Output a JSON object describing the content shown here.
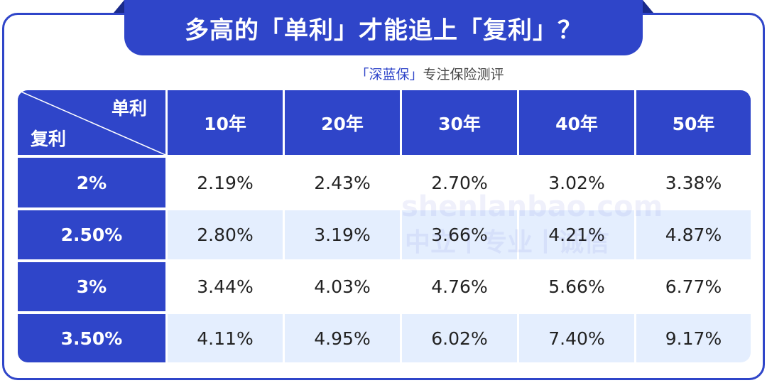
{
  "header": {
    "title": "多高的「单利」才能追上「复利」？",
    "subtitle_brand": "「深蓝保」",
    "subtitle_text": "专注保险测评"
  },
  "watermark": {
    "site": "shenlanbao.com",
    "slogan": "中立丨专业丨诚信"
  },
  "table": {
    "corner_top": "单利",
    "corner_bottom": "复利",
    "columns": [
      "10年",
      "20年",
      "30年",
      "40年",
      "50年"
    ],
    "rows": [
      {
        "label": "2%",
        "cells": [
          "2.19%",
          "2.43%",
          "2.70%",
          "3.02%",
          "3.38%"
        ]
      },
      {
        "label": "2.50%",
        "cells": [
          "2.80%",
          "3.19%",
          "3.66%",
          "4.21%",
          "4.87%"
        ]
      },
      {
        "label": "3%",
        "cells": [
          "3.44%",
          "4.03%",
          "4.76%",
          "5.66%",
          "6.77%"
        ]
      },
      {
        "label": "3.50%",
        "cells": [
          "4.11%",
          "4.95%",
          "6.02%",
          "7.40%",
          "9.17%"
        ]
      }
    ]
  }
}
